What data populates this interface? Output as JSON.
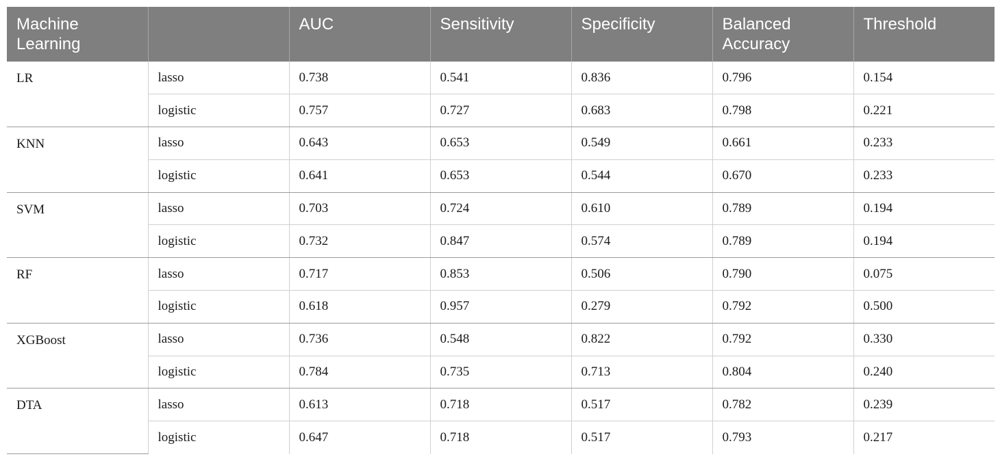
{
  "table": {
    "headers": [
      "Machine\nLearning",
      "",
      "AUC",
      "Sensitivity",
      "Specificity",
      "Balanced\nAccuracy",
      "Threshold"
    ],
    "groups": [
      {
        "model": "LR",
        "rows": [
          {
            "method": "lasso",
            "auc": "0.738",
            "sensitivity": "0.541",
            "specificity": "0.836",
            "balanced_accuracy": "0.796",
            "threshold": "0.154"
          },
          {
            "method": "logistic",
            "auc": "0.757",
            "sensitivity": "0.727",
            "specificity": "0.683",
            "balanced_accuracy": "0.798",
            "threshold": "0.221"
          }
        ]
      },
      {
        "model": "KNN",
        "rows": [
          {
            "method": "lasso",
            "auc": "0.643",
            "sensitivity": "0.653",
            "specificity": "0.549",
            "balanced_accuracy": "0.661",
            "threshold": "0.233"
          },
          {
            "method": "logistic",
            "auc": "0.641",
            "sensitivity": "0.653",
            "specificity": "0.544",
            "balanced_accuracy": "0.670",
            "threshold": "0.233"
          }
        ]
      },
      {
        "model": "SVM",
        "rows": [
          {
            "method": "lasso",
            "auc": "0.703",
            "sensitivity": "0.724",
            "specificity": "0.610",
            "balanced_accuracy": "0.789",
            "threshold": "0.194"
          },
          {
            "method": "logistic",
            "auc": "0.732",
            "sensitivity": "0.847",
            "specificity": "0.574",
            "balanced_accuracy": "0.789",
            "threshold": "0.194"
          }
        ]
      },
      {
        "model": "RF",
        "rows": [
          {
            "method": "lasso",
            "auc": "0.717",
            "sensitivity": "0.853",
            "specificity": "0.506",
            "balanced_accuracy": "0.790",
            "threshold": "0.075"
          },
          {
            "method": "logistic",
            "auc": "0.618",
            "sensitivity": "0.957",
            "specificity": "0.279",
            "balanced_accuracy": "0.792",
            "threshold": "0.500"
          }
        ]
      },
      {
        "model": "XGBoost",
        "rows": [
          {
            "method": "lasso",
            "auc": "0.736",
            "sensitivity": "0.548",
            "specificity": "0.822",
            "balanced_accuracy": "0.792",
            "threshold": "0.330"
          },
          {
            "method": "logistic",
            "auc": "0.784",
            "sensitivity": "0.735",
            "specificity": "0.713",
            "balanced_accuracy": "0.804",
            "threshold": "0.240"
          }
        ]
      },
      {
        "model": "DTA",
        "rows": [
          {
            "method": "lasso",
            "auc": "0.613",
            "sensitivity": "0.718",
            "specificity": "0.517",
            "balanced_accuracy": "0.782",
            "threshold": "0.239"
          },
          {
            "method": "logistic",
            "auc": "0.647",
            "sensitivity": "0.718",
            "specificity": "0.517",
            "balanced_accuracy": "0.793",
            "threshold": "0.217"
          }
        ]
      }
    ],
    "colors": {
      "header_bg": "#7f7f7f",
      "header_text": "#ffffff",
      "grid": "#d0d0d0"
    }
  }
}
